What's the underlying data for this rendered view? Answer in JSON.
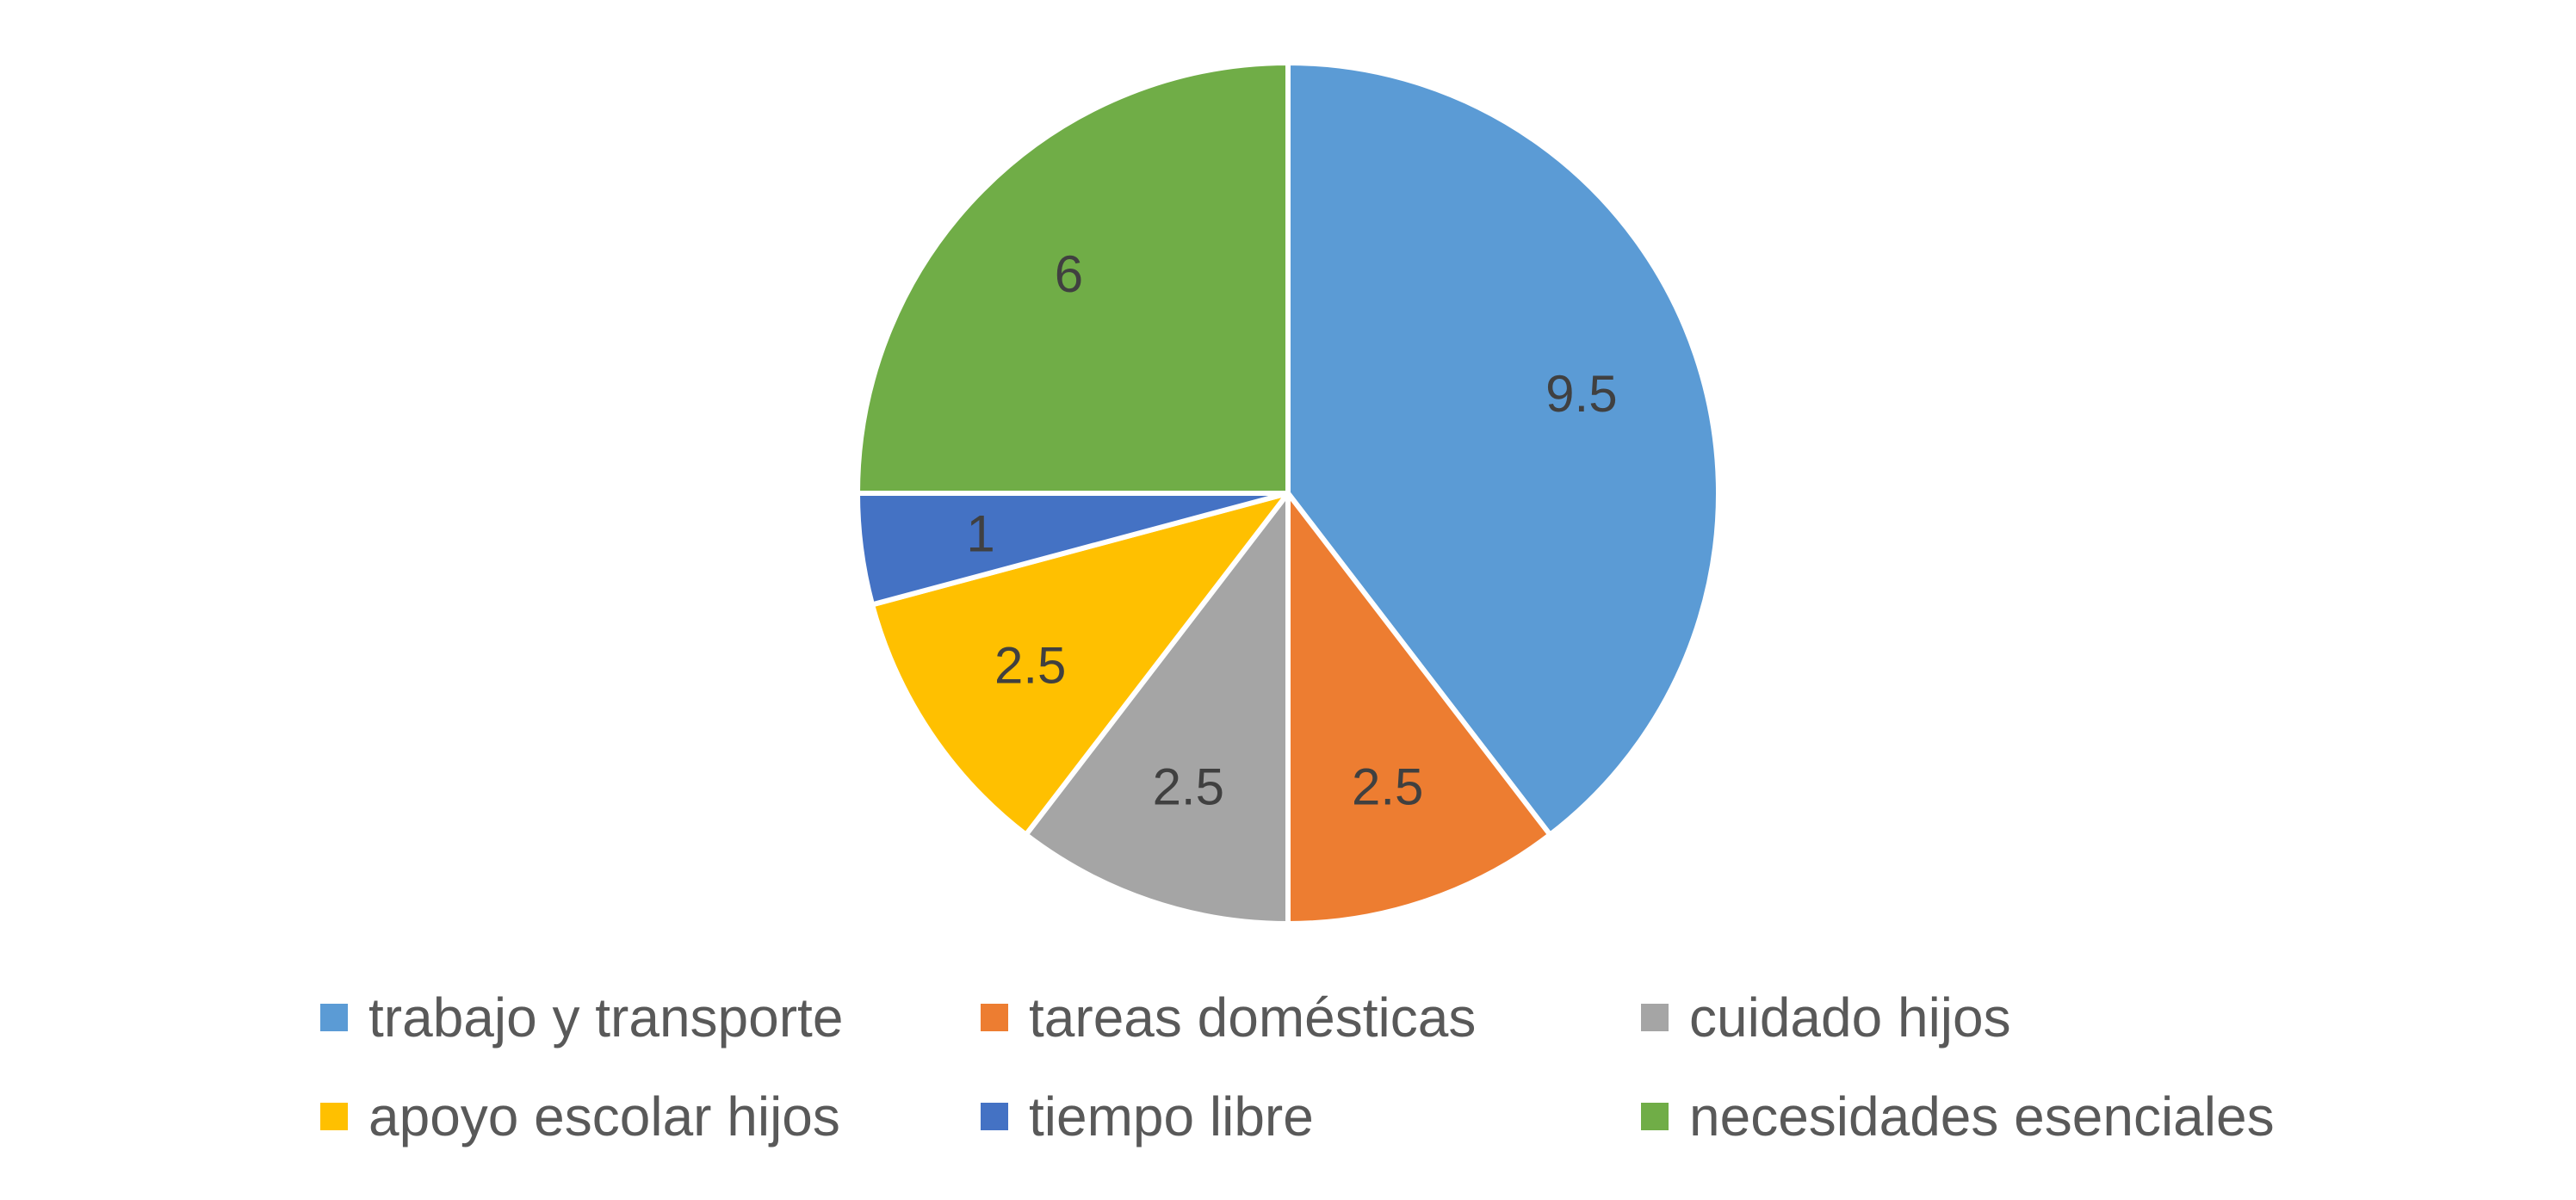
{
  "chart_data": {
    "type": "pie",
    "title": "",
    "categories": [
      "trabajo y transporte",
      "tareas domésticas",
      "cuidado hijos",
      "apoyo escolar hijos",
      "tiempo libre",
      "necesidades esenciales"
    ],
    "values": [
      9.5,
      2.5,
      2.5,
      2.5,
      1,
      6
    ],
    "labels": [
      "9.5",
      "2.5",
      "2.5",
      "2.5",
      "1",
      "6"
    ],
    "colors": [
      "#5B9BD5",
      "#ED7D31",
      "#A5A5A5",
      "#FFC000",
      "#4472C4",
      "#70AD47"
    ],
    "start_angle": "12 o'clock",
    "direction": "clockwise",
    "legend_position": "bottom",
    "legend_columns": 3
  }
}
